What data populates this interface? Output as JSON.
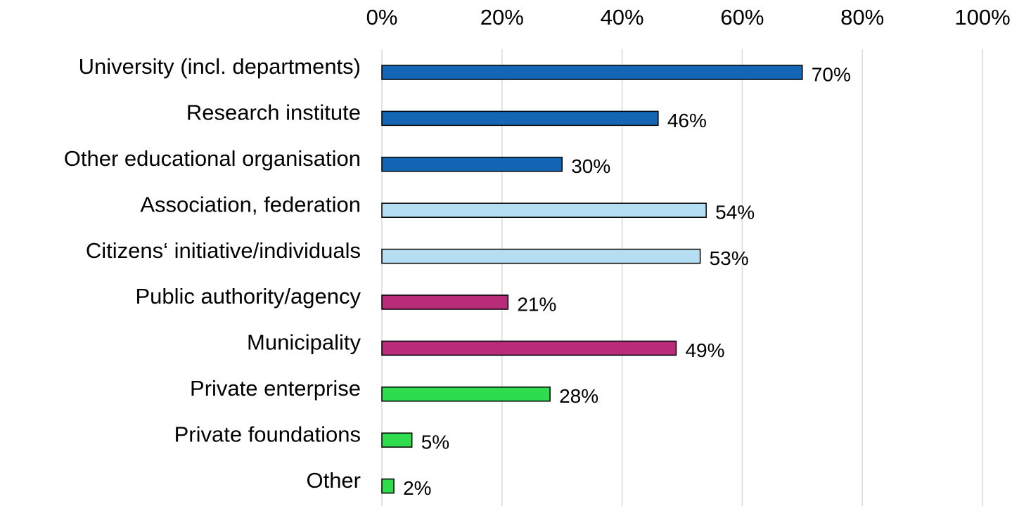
{
  "chart_data": {
    "type": "bar",
    "orientation": "horizontal",
    "categories": [
      "University (incl. departments)",
      "Research institute",
      "Other educational organisation",
      "Association, federation",
      "Citizens‘ initiative/individuals",
      "Public authority/agency",
      "Municipality",
      "Private enterprise",
      "Private foundations",
      "Other"
    ],
    "values": [
      70,
      46,
      30,
      54,
      53,
      21,
      49,
      28,
      5,
      2
    ],
    "value_labels": [
      "70%",
      "46%",
      "30%",
      "54%",
      "53%",
      "21%",
      "49%",
      "28%",
      "5%",
      "2%"
    ],
    "colors": [
      "#1565b5",
      "#1565b5",
      "#1565b5",
      "#b5def2",
      "#b5def2",
      "#b82c7a",
      "#b82c7a",
      "#2edc4e",
      "#2edc4e",
      "#2edc4e"
    ],
    "xlim": [
      0,
      100
    ],
    "xticks": [
      {
        "value": 0,
        "label": "0%"
      },
      {
        "value": 20,
        "label": "20%"
      },
      {
        "value": 40,
        "label": "40%"
      },
      {
        "value": 60,
        "label": "60%"
      },
      {
        "value": 80,
        "label": "80%"
      },
      {
        "value": 100,
        "label": "100%"
      }
    ],
    "grid": true
  }
}
